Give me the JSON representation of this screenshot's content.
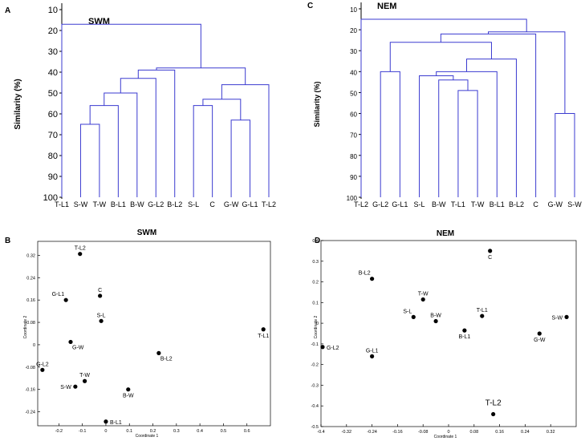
{
  "panels": {
    "A": "A",
    "B": "B",
    "C": "C",
    "D": "D"
  },
  "colors": {
    "dendrogram": "#3b3bd0",
    "point": "#000000",
    "axis": "#000000"
  },
  "chart_data": [
    {
      "panel": "A",
      "type": "dendrogram",
      "title": "SWM",
      "ylabel": "Similarity (%)",
      "ylim": [
        10,
        100
      ],
      "yticks": [
        10,
        20,
        30,
        40,
        50,
        60,
        70,
        80,
        90,
        100
      ],
      "leaves": [
        "T-L1",
        "S-W",
        "T-W",
        "B-L1",
        "B-W",
        "G-L2",
        "B-L2",
        "S-L",
        "C",
        "G-W",
        "G-L1",
        "T-L2"
      ],
      "merges": [
        {
          "left": "S-W",
          "right": "T-W",
          "similarity": 65
        },
        {
          "left": "G-W",
          "right": "G-L1",
          "similarity": 63
        },
        {
          "left": "1",
          "right": "B-L1",
          "similarity": 56
        },
        {
          "left": "S-L",
          "right": "C",
          "similarity": 56
        },
        {
          "left": "4",
          "right": "2",
          "similarity": 53
        },
        {
          "left": "3",
          "right": "B-W",
          "similarity": 50
        },
        {
          "left": "5",
          "right": "T-L2",
          "similarity": 46
        },
        {
          "left": "6",
          "right": "G-L2",
          "similarity": 43
        },
        {
          "left": "8",
          "right": "B-L2",
          "similarity": 39
        },
        {
          "left": "9",
          "right": "7",
          "similarity": 38
        },
        {
          "left": "T-L1",
          "right": "10",
          "similarity": 17
        }
      ]
    },
    {
      "panel": "C",
      "type": "dendrogram",
      "title": "NEM",
      "ylabel": "Similarity (%)",
      "ylim": [
        10,
        100
      ],
      "yticks": [
        10,
        20,
        30,
        40,
        50,
        60,
        70,
        80,
        90,
        100
      ],
      "leaves": [
        "T-L2",
        "G-L2",
        "G-L1",
        "S-L",
        "B-W",
        "T-L1",
        "T-W",
        "B-L1",
        "B-L2",
        "C",
        "G-W",
        "S-W"
      ],
      "merges": [
        {
          "left": "T-L1",
          "right": "T-W",
          "similarity": 49
        },
        {
          "left": "B-W",
          "right": "1",
          "similarity": 44
        },
        {
          "left": "S-L",
          "right": "2",
          "similarity": 42
        },
        {
          "left": "G-L2",
          "right": "G-L1",
          "similarity": 40
        },
        {
          "left": "3",
          "right": "B-L1",
          "similarity": 40
        },
        {
          "left": "G-W",
          "right": "S-W",
          "similarity": 60
        },
        {
          "left": "5",
          "right": "B-L2",
          "similarity": 34
        },
        {
          "left": "4",
          "right": "7",
          "similarity": 26
        },
        {
          "left": "8",
          "right": "C",
          "similarity": 22
        },
        {
          "left": "9",
          "right": "6",
          "similarity": 21
        },
        {
          "left": "T-L2",
          "right": "10",
          "similarity": 15
        }
      ]
    },
    {
      "panel": "B",
      "type": "scatter",
      "title": "SWM",
      "xlabel": "Coordinate 1",
      "ylabel": "Coordinate 2",
      "xlim": [
        -0.29,
        0.7
      ],
      "ylim": [
        -0.29,
        0.37
      ],
      "xticks": [
        "-0.2",
        "-0.1",
        "0",
        "0.1",
        "0.2",
        "0.3",
        "0.4",
        "0.5",
        "0.6"
      ],
      "xtick_values": [
        -0.2,
        -0.1,
        0,
        0.1,
        0.2,
        0.3,
        0.4,
        0.5,
        0.6
      ],
      "yticks": [
        "0.32",
        "0.24",
        "0.16",
        "0.08",
        "0",
        "-0.08",
        "-0.16",
        "-0.24"
      ],
      "ytick_values": [
        0.32,
        0.24,
        0.16,
        0.08,
        0,
        -0.08,
        -0.16,
        -0.24
      ],
      "points": [
        {
          "label": "T-L2",
          "x": -0.11,
          "y": 0.325,
          "pos": "above"
        },
        {
          "label": "G-L1",
          "x": -0.17,
          "y": 0.16,
          "pos": "above-left"
        },
        {
          "label": "C",
          "x": -0.025,
          "y": 0.175,
          "pos": "above"
        },
        {
          "label": "S-L",
          "x": -0.02,
          "y": 0.085,
          "pos": "above"
        },
        {
          "label": "T-L1",
          "x": 0.67,
          "y": 0.055,
          "pos": "below"
        },
        {
          "label": "G-W",
          "x": -0.15,
          "y": 0.01,
          "pos": "below-right"
        },
        {
          "label": "B-L2",
          "x": 0.225,
          "y": -0.03,
          "pos": "below-right"
        },
        {
          "label": "G-L2",
          "x": -0.27,
          "y": -0.09,
          "pos": "above"
        },
        {
          "label": "T-W",
          "x": -0.09,
          "y": -0.13,
          "pos": "above"
        },
        {
          "label": "S-W",
          "x": -0.13,
          "y": -0.15,
          "pos": "left"
        },
        {
          "label": "B-W",
          "x": 0.095,
          "y": -0.16,
          "pos": "below"
        },
        {
          "label": "B-L1",
          "x": 0.0,
          "y": -0.275,
          "pos": "right"
        }
      ]
    },
    {
      "panel": "D",
      "type": "scatter",
      "title": "NEM",
      "xlabel": "Coordinate 1",
      "ylabel": "Coordinate 2",
      "xlim": [
        -0.4,
        0.4
      ],
      "ylim": [
        -0.5,
        0.4
      ],
      "xticks": [
        "-0.4",
        "-0.32",
        "-0.24",
        "-0.16",
        "-0.08",
        "0",
        "0.08",
        "0.16",
        "0.24",
        "0.32"
      ],
      "xtick_values": [
        -0.4,
        -0.32,
        -0.24,
        -0.16,
        -0.08,
        0,
        0.08,
        0.16,
        0.24,
        0.32
      ],
      "yticks": [
        "0.4",
        "0.3",
        "0.2",
        "0.1",
        "0",
        "-0.1",
        "-0.2",
        "-0.3",
        "-0.4",
        "-0.5"
      ],
      "ytick_values": [
        0.4,
        0.3,
        0.2,
        0.1,
        0,
        -0.1,
        -0.2,
        -0.3,
        -0.4,
        -0.5
      ],
      "points": [
        {
          "label": "C",
          "x": 0.13,
          "y": 0.35,
          "pos": "below"
        },
        {
          "label": "B-L2",
          "x": -0.24,
          "y": 0.215,
          "pos": "above-left"
        },
        {
          "label": "T-W",
          "x": -0.08,
          "y": 0.115,
          "pos": "above"
        },
        {
          "label": "S-L",
          "x": -0.11,
          "y": 0.03,
          "pos": "above-left"
        },
        {
          "label": "B-W",
          "x": -0.04,
          "y": 0.01,
          "pos": "above"
        },
        {
          "label": "T-L1",
          "x": 0.105,
          "y": 0.035,
          "pos": "above"
        },
        {
          "label": "B-L1",
          "x": 0.05,
          "y": -0.035,
          "pos": "below"
        },
        {
          "label": "S-W",
          "x": 0.37,
          "y": 0.03,
          "pos": "left"
        },
        {
          "label": "G-W",
          "x": 0.285,
          "y": -0.05,
          "pos": "below"
        },
        {
          "label": "G-L2",
          "x": -0.395,
          "y": -0.115,
          "pos": "right"
        },
        {
          "label": "G-L1",
          "x": -0.24,
          "y": -0.16,
          "pos": "above"
        },
        {
          "label": "T-L2",
          "x": 0.14,
          "y": -0.44,
          "pos": "above-big"
        }
      ]
    }
  ]
}
